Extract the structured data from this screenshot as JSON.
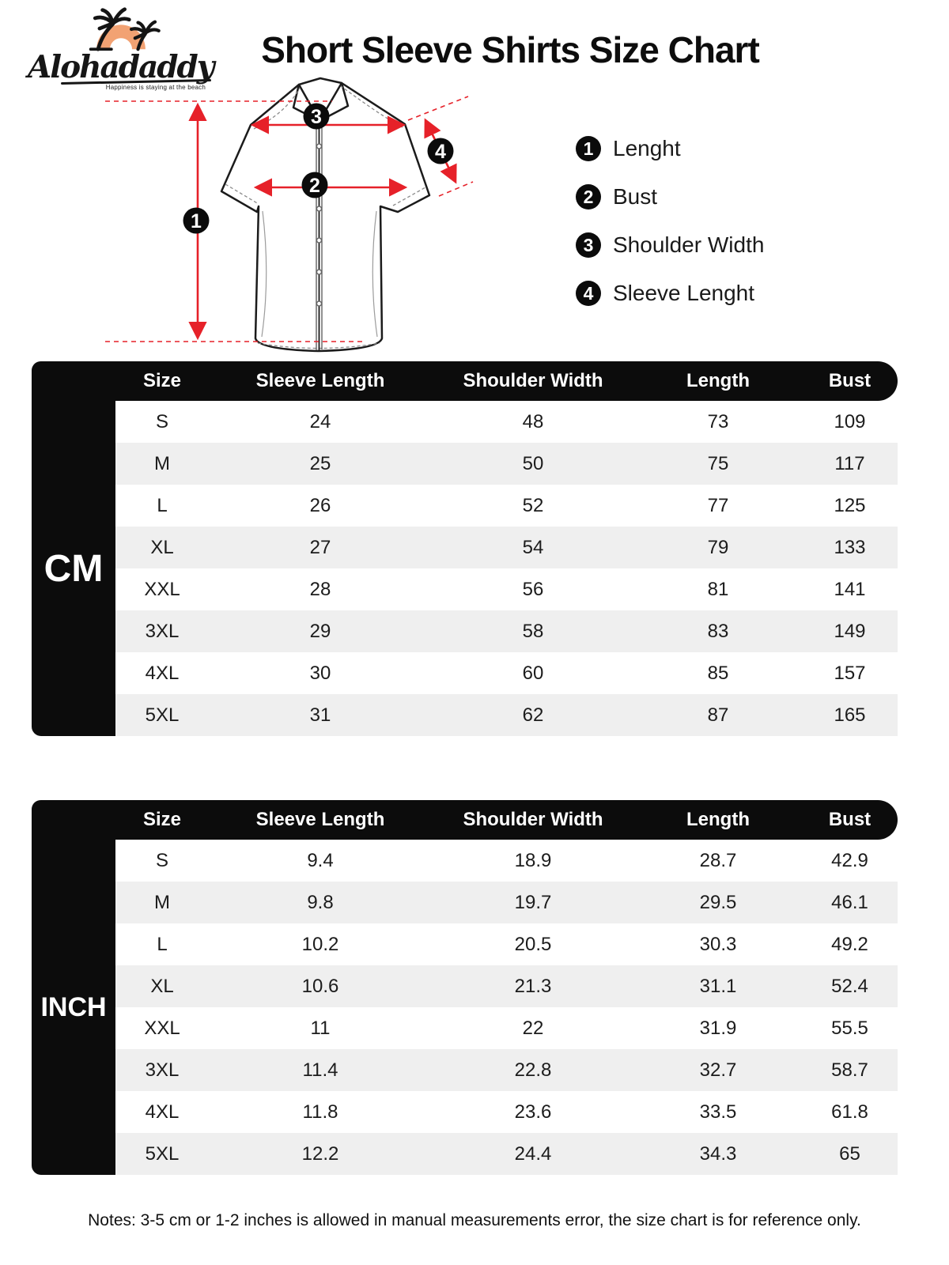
{
  "brand": {
    "name": "Alohadaddy",
    "tagline": "Happiness is staying at the beach"
  },
  "title": "Short Sleeve Shirts Size Chart",
  "diagram": {
    "markers": [
      {
        "num": "1"
      },
      {
        "num": "2"
      },
      {
        "num": "3"
      },
      {
        "num": "4"
      }
    ]
  },
  "legend": [
    {
      "num": "1",
      "label": "Lenght"
    },
    {
      "num": "2",
      "label": "Bust"
    },
    {
      "num": "3",
      "label": "Shoulder Width"
    },
    {
      "num": "4",
      "label": "Sleeve Lenght"
    }
  ],
  "tables": [
    {
      "unit": "CM",
      "columns": [
        "Size",
        "Sleeve Length",
        "Shoulder Width",
        "Length",
        "Bust"
      ],
      "rows": [
        [
          "S",
          "24",
          "48",
          "73",
          "109"
        ],
        [
          "M",
          "25",
          "50",
          "75",
          "117"
        ],
        [
          "L",
          "26",
          "52",
          "77",
          "125"
        ],
        [
          "XL",
          "27",
          "54",
          "79",
          "133"
        ],
        [
          "XXL",
          "28",
          "56",
          "81",
          "141"
        ],
        [
          "3XL",
          "29",
          "58",
          "83",
          "149"
        ],
        [
          "4XL",
          "30",
          "60",
          "85",
          "157"
        ],
        [
          "5XL",
          "31",
          "62",
          "87",
          "165"
        ]
      ]
    },
    {
      "unit": "INCH",
      "columns": [
        "Size",
        "Sleeve Length",
        "Shoulder Width",
        "Length",
        "Bust"
      ],
      "rows": [
        [
          "S",
          "9.4",
          "18.9",
          "28.7",
          "42.9"
        ],
        [
          "M",
          "9.8",
          "19.7",
          "29.5",
          "46.1"
        ],
        [
          "L",
          "10.2",
          "20.5",
          "30.3",
          "49.2"
        ],
        [
          "XL",
          "10.6",
          "21.3",
          "31.1",
          "52.4"
        ],
        [
          "XXL",
          "11",
          "22",
          "31.9",
          "55.5"
        ],
        [
          "3XL",
          "11.4",
          "22.8",
          "32.7",
          "58.7"
        ],
        [
          "4XL",
          "11.8",
          "23.6",
          "33.5",
          "61.8"
        ],
        [
          "5XL",
          "12.2",
          "24.4",
          "34.3",
          "65"
        ]
      ]
    }
  ],
  "notes": "Notes: 3-5 cm or 1-2 inches is allowed in manual measurements error, the size chart is for reference only.",
  "colors": {
    "measure_red": "#E62129",
    "logo_orange": "#F2A273",
    "row_gray": "#EFEFEF",
    "black": "#0C0C0C"
  }
}
